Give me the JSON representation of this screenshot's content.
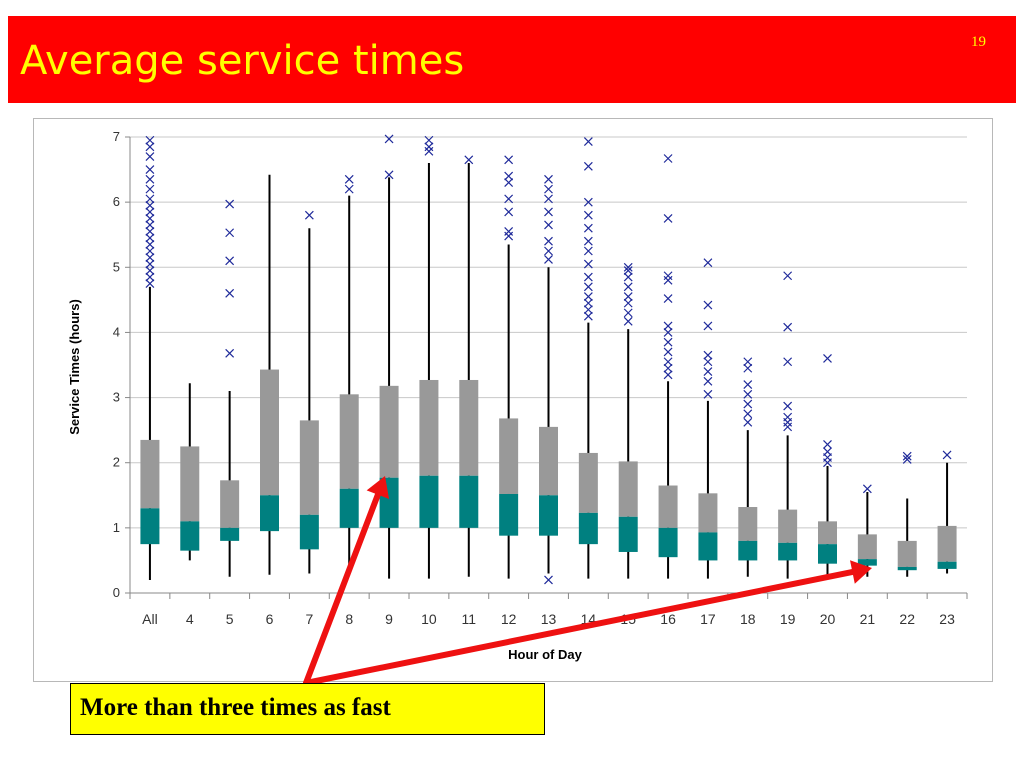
{
  "slide": {
    "title": "Average service times",
    "number": "19"
  },
  "callout": {
    "text": "More than three times as fast"
  },
  "colors": {
    "title_bg": "#ff0000",
    "title_text": "#ffff00",
    "box_upper": "#999999",
    "box_lower": "#008080",
    "outlier": "#1f2a9a",
    "arrow": "#ee1111",
    "callout_bg": "#ffff00"
  },
  "chart_data": {
    "type": "box",
    "title": "",
    "xlabel": "Hour of Day",
    "ylabel": "Service Times (hours)",
    "ylim": [
      0,
      7
    ],
    "yticks": [
      0,
      1,
      2,
      3,
      4,
      5,
      6,
      7
    ],
    "grid": true,
    "categories": [
      "All",
      "4",
      "5",
      "6",
      "7",
      "8",
      "9",
      "10",
      "11",
      "12",
      "13",
      "14",
      "15",
      "16",
      "17",
      "18",
      "19",
      "20",
      "21",
      "22",
      "23"
    ],
    "boxes": [
      {
        "cat": "All",
        "min": 0.2,
        "q1": 0.75,
        "median": 1.3,
        "q3": 2.35,
        "max": 4.7,
        "outliers": [
          4.75,
          4.85,
          4.95,
          5.05,
          5.15,
          5.25,
          5.35,
          5.45,
          5.55,
          5.65,
          5.75,
          5.85,
          5.95,
          6.05,
          6.2,
          6.35,
          6.5,
          6.7,
          6.85,
          6.95
        ]
      },
      {
        "cat": "4",
        "min": 0.5,
        "q1": 0.65,
        "median": 1.1,
        "q3": 2.25,
        "max": 3.22,
        "outliers": []
      },
      {
        "cat": "5",
        "min": 0.25,
        "q1": 0.8,
        "median": 1.0,
        "q3": 1.73,
        "max": 3.1,
        "outliers": [
          3.68,
          4.6,
          5.1,
          5.53,
          5.97
        ]
      },
      {
        "cat": "6",
        "min": 0.28,
        "q1": 0.95,
        "median": 1.5,
        "q3": 3.43,
        "max": 6.42,
        "outliers": []
      },
      {
        "cat": "7",
        "min": 0.3,
        "q1": 0.67,
        "median": 1.2,
        "q3": 2.65,
        "max": 5.6,
        "outliers": [
          5.8
        ]
      },
      {
        "cat": "8",
        "min": 0.3,
        "q1": 1.0,
        "median": 1.6,
        "q3": 3.05,
        "max": 6.1,
        "outliers": [
          6.2,
          6.35
        ]
      },
      {
        "cat": "9",
        "min": 0.22,
        "q1": 1.0,
        "median": 1.77,
        "q3": 3.18,
        "max": 6.38,
        "outliers": [
          6.42,
          6.97
        ]
      },
      {
        "cat": "10",
        "min": 0.22,
        "q1": 1.0,
        "median": 1.8,
        "q3": 3.27,
        "max": 6.6,
        "outliers": [
          6.78,
          6.85,
          6.95
        ]
      },
      {
        "cat": "11",
        "min": 0.25,
        "q1": 1.0,
        "median": 1.8,
        "q3": 3.27,
        "max": 6.6,
        "outliers": [
          6.65
        ]
      },
      {
        "cat": "12",
        "min": 0.22,
        "q1": 0.88,
        "median": 1.52,
        "q3": 2.68,
        "max": 5.35,
        "outliers": [
          5.48,
          5.55,
          5.85,
          6.05,
          6.3,
          6.4,
          6.65
        ]
      },
      {
        "cat": "13",
        "min": 0.3,
        "q1": 0.88,
        "median": 1.5,
        "q3": 2.55,
        "max": 5.0,
        "outliers": [
          0.2,
          5.12,
          5.25,
          5.4,
          5.65,
          5.85,
          6.05,
          6.2,
          6.35
        ]
      },
      {
        "cat": "14",
        "min": 0.22,
        "q1": 0.75,
        "median": 1.23,
        "q3": 2.15,
        "max": 4.15,
        "outliers": [
          4.25,
          4.35,
          4.45,
          4.55,
          4.7,
          4.85,
          5.05,
          5.25,
          5.4,
          5.6,
          5.8,
          6.0,
          6.55,
          6.93
        ]
      },
      {
        "cat": "15",
        "min": 0.22,
        "q1": 0.63,
        "median": 1.17,
        "q3": 2.02,
        "max": 4.05,
        "outliers": [
          4.17,
          4.3,
          4.45,
          4.55,
          4.7,
          4.85,
          4.95,
          5.0
        ]
      },
      {
        "cat": "16",
        "min": 0.22,
        "q1": 0.55,
        "median": 1.0,
        "q3": 1.65,
        "max": 3.25,
        "outliers": [
          3.35,
          3.45,
          3.55,
          3.7,
          3.85,
          4.0,
          4.1,
          4.52,
          4.8,
          4.87,
          5.75,
          6.67
        ]
      },
      {
        "cat": "17",
        "min": 0.22,
        "q1": 0.5,
        "median": 0.93,
        "q3": 1.53,
        "max": 2.95,
        "outliers": [
          3.05,
          3.25,
          3.4,
          3.55,
          3.65,
          4.1,
          4.42,
          5.07
        ]
      },
      {
        "cat": "18",
        "min": 0.25,
        "q1": 0.5,
        "median": 0.8,
        "q3": 1.32,
        "max": 2.5,
        "outliers": [
          2.62,
          2.75,
          2.9,
          3.05,
          3.2,
          3.45,
          3.55
        ]
      },
      {
        "cat": "19",
        "min": 0.22,
        "q1": 0.5,
        "median": 0.77,
        "q3": 1.28,
        "max": 2.42,
        "outliers": [
          2.55,
          2.62,
          2.7,
          2.87,
          3.55,
          4.08,
          4.87
        ]
      },
      {
        "cat": "20",
        "min": 0.22,
        "q1": 0.45,
        "median": 0.75,
        "q3": 1.1,
        "max": 1.95,
        "outliers": [
          2.0,
          2.08,
          2.17,
          2.28,
          3.6
        ]
      },
      {
        "cat": "21",
        "min": 0.25,
        "q1": 0.42,
        "median": 0.52,
        "q3": 0.9,
        "max": 1.55,
        "outliers": [
          1.6
        ]
      },
      {
        "cat": "22",
        "min": 0.25,
        "q1": 0.35,
        "median": 0.4,
        "q3": 0.8,
        "max": 1.45,
        "outliers": [
          2.05,
          2.1
        ]
      },
      {
        "cat": "23",
        "min": 0.3,
        "q1": 0.37,
        "median": 0.48,
        "q3": 1.03,
        "max": 2.0,
        "outliers": [
          2.12
        ]
      }
    ]
  }
}
